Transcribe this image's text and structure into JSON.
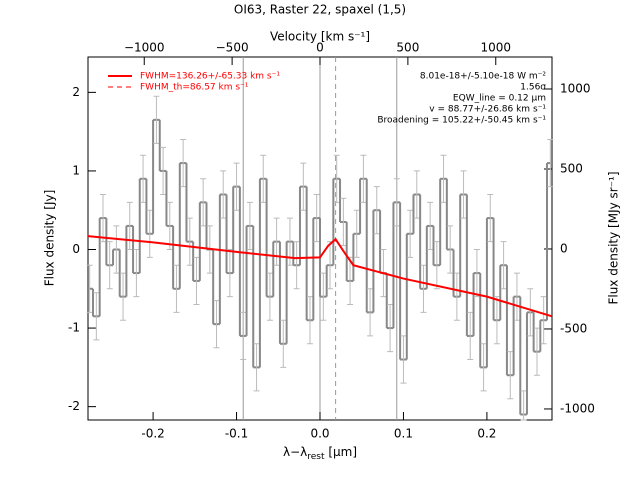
{
  "chart_data": {
    "type": "step",
    "title": "OI63, Raster 22, spaxel (1,5)",
    "xlabel": [
      "λ−λ",
      "rest",
      " [μm]"
    ],
    "ylabel": "Flux density [Jy]",
    "y2label": "Flux density [MJy sr⁻¹]",
    "toplabel": "Velocity [km s⁻¹]",
    "xlim": [
      -0.278,
      0.278
    ],
    "xticks": [
      -0.2,
      -0.1,
      {
        "value": 0,
        "label": "0.0"
      },
      0.1,
      0.2
    ],
    "ylim": [
      -2.17,
      2.45
    ],
    "yticks": [
      -2,
      -1,
      0,
      1,
      2
    ],
    "y2lim": [
      -1069,
      1200
    ],
    "y2ticks": [
      -1000,
      -500,
      0,
      500,
      1000
    ],
    "topxlim": [
      -1320,
      1320
    ],
    "topxticks": [
      {
        "value": -1000,
        "label": "−1000"
      },
      {
        "value": -500,
        "label": "−500"
      },
      0,
      500,
      1000
    ],
    "vlines": [
      -0.092,
      0,
      0.092
    ],
    "dashed_line": 0.0187,
    "error": 0.3,
    "x": [
      -0.276,
      -0.268,
      -0.26,
      -0.252,
      -0.244,
      -0.236,
      -0.228,
      -0.22,
      -0.212,
      -0.204,
      -0.196,
      -0.188,
      -0.18,
      -0.172,
      -0.164,
      -0.156,
      -0.148,
      -0.14,
      -0.132,
      -0.124,
      -0.116,
      -0.108,
      -0.1,
      -0.092,
      -0.084,
      -0.076,
      -0.068,
      -0.06,
      -0.052,
      -0.044,
      -0.036,
      -0.028,
      -0.02,
      -0.012,
      -0.004,
      0.004,
      0.012,
      0.02,
      0.028,
      0.036,
      0.044,
      0.052,
      0.06,
      0.068,
      0.076,
      0.084,
      0.092,
      0.1,
      0.108,
      0.116,
      0.124,
      0.132,
      0.14,
      0.148,
      0.156,
      0.164,
      0.172,
      0.18,
      0.188,
      0.196,
      0.204,
      0.212,
      0.22,
      0.228,
      0.236,
      0.244,
      0.252,
      0.26,
      0.268,
      0.276
    ],
    "series": [
      {
        "name": "data",
        "color": "#888888",
        "values": [
          -0.5,
          -0.85,
          0.4,
          -0.2,
          0.0,
          -0.6,
          0.3,
          -0.3,
          0.9,
          0.2,
          1.65,
          1.0,
          0.3,
          -0.5,
          1.1,
          0.1,
          -0.4,
          0.6,
          0.0,
          -0.95,
          0.7,
          -0.3,
          0.8,
          -1.1,
          0.3,
          -1.5,
          0.9,
          -0.6,
          0.1,
          -1.2,
          0.1,
          -0.2,
          0.8,
          -0.9,
          0.4,
          -0.6,
          -0.2,
          0.9,
          0.35,
          -0.4,
          0.2,
          0.9,
          -0.8,
          0.5,
          -0.3,
          -1.0,
          0.6,
          -1.4,
          0.2,
          0.7,
          -0.5,
          0.3,
          -0.2,
          0.9,
          0.0,
          -0.6,
          0.7,
          -1.1,
          -0.3,
          -1.5,
          0.4,
          -0.9,
          -0.2,
          -1.6,
          -0.6,
          -2.1,
          -0.8,
          -1.3,
          -0.9,
          1.1
        ]
      }
    ],
    "fit": {
      "name": "FWHM=136.26+/-65.33 km s⁻¹",
      "color": "#ff0000",
      "x": [
        -0.278,
        -0.2,
        -0.1,
        -0.03,
        0.0,
        0.01,
        0.0187,
        0.03,
        0.04,
        0.1,
        0.2,
        0.278
      ],
      "values": [
        0.17,
        0.09,
        -0.03,
        -0.11,
        -0.1,
        0.05,
        0.13,
        -0.05,
        -0.2,
        -0.37,
        -0.6,
        -0.85
      ]
    },
    "fit_th": {
      "name": "FWHM_th=86.57 km s⁻¹",
      "color": "#ff0000"
    },
    "annotations": [
      "8.01e-18+/-5.10e-18 W m⁻²",
      "1.56σ",
      "EQW_line = 0.12 μm",
      "v = 88.77+/-26.86 km s⁻¹",
      "Broadening = 105.22+/-50.45 km s⁻¹"
    ]
  }
}
